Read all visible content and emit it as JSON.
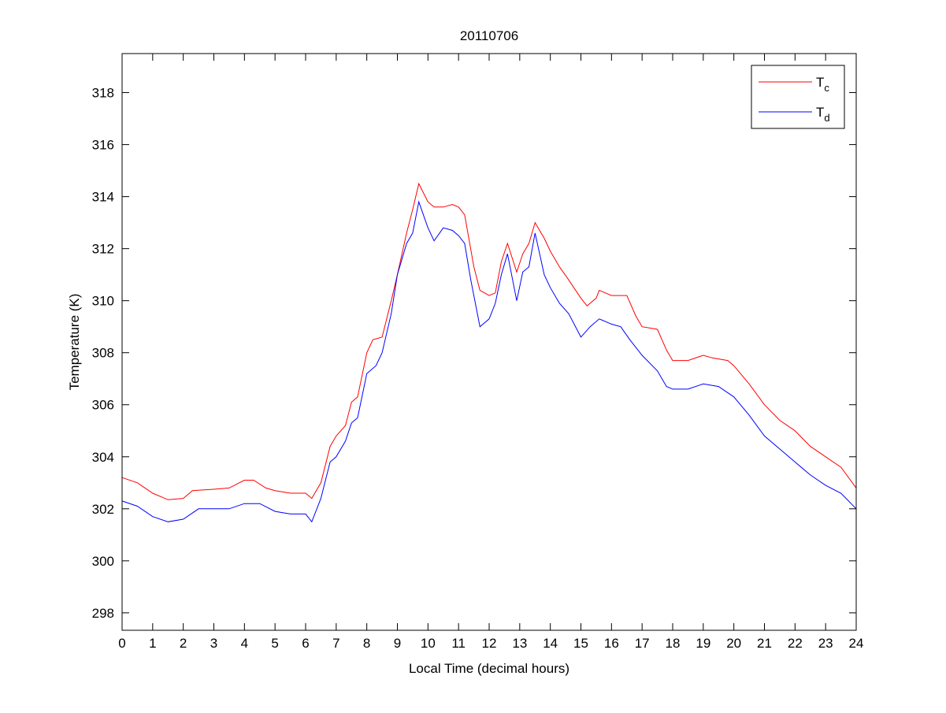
{
  "chart_data": {
    "type": "line",
    "title": "20110706",
    "xlabel": "Local Time (decimal hours)",
    "ylabel": "Temperature (K)",
    "xlim": [
      0,
      24
    ],
    "ylim": [
      297.33,
      319.5
    ],
    "xticks": [
      0,
      1,
      2,
      3,
      4,
      5,
      6,
      7,
      8,
      9,
      10,
      11,
      12,
      13,
      14,
      15,
      16,
      17,
      18,
      19,
      20,
      21,
      22,
      23,
      24
    ],
    "yticks": [
      298,
      300,
      302,
      304,
      306,
      308,
      310,
      312,
      314,
      316,
      318
    ],
    "grid": false,
    "legend_position": "top-right",
    "series": [
      {
        "name": "T",
        "subscript": "c",
        "color": "#ff0000",
        "x": [
          0,
          0.5,
          1,
          1.5,
          2,
          2.3,
          3,
          3.5,
          4,
          4.3,
          4.7,
          5,
          5.5,
          6,
          6.2,
          6.5,
          6.8,
          7,
          7.3,
          7.5,
          7.7,
          8,
          8.2,
          8.5,
          8.8,
          9,
          9.3,
          9.5,
          9.7,
          10,
          10.2,
          10.5,
          10.8,
          11,
          11.2,
          11.5,
          11.7,
          12,
          12.2,
          12.4,
          12.6,
          12.9,
          13.1,
          13.3,
          13.5,
          13.8,
          14,
          14.3,
          14.6,
          15,
          15.2,
          15.5,
          15.6,
          16,
          16.5,
          16.8,
          17,
          17.5,
          17.8,
          18,
          18.5,
          19,
          19.3,
          19.8,
          20,
          20.5,
          21,
          21.5,
          22,
          22.5,
          23,
          23.5,
          24
        ],
        "y": [
          303.2,
          303.0,
          302.6,
          302.35,
          302.4,
          302.7,
          302.75,
          302.8,
          303.1,
          303.1,
          302.8,
          302.7,
          302.6,
          302.6,
          302.4,
          303.0,
          304.4,
          304.8,
          305.2,
          306.1,
          306.3,
          308.0,
          308.5,
          308.6,
          310.0,
          311.0,
          312.6,
          313.5,
          314.5,
          313.8,
          313.6,
          313.6,
          313.7,
          313.6,
          313.3,
          311.3,
          310.4,
          310.2,
          310.3,
          311.5,
          312.2,
          311.1,
          311.8,
          312.2,
          313.0,
          312.4,
          311.9,
          311.3,
          310.8,
          310.1,
          309.8,
          310.1,
          310.4,
          310.2,
          310.2,
          309.4,
          309.0,
          308.9,
          308.1,
          307.7,
          307.7,
          307.9,
          307.8,
          307.7,
          307.5,
          306.8,
          306.0,
          305.4,
          305.0,
          304.4,
          304.0,
          303.6,
          302.8
        ]
      },
      {
        "name": "T",
        "subscript": "d",
        "color": "#0000ff",
        "x": [
          0,
          0.5,
          1,
          1.5,
          2,
          2.5,
          3,
          3.5,
          4,
          4.5,
          5,
          5.5,
          6,
          6.2,
          6.5,
          6.8,
          7,
          7.3,
          7.5,
          7.7,
          8,
          8.3,
          8.5,
          8.8,
          9,
          9.3,
          9.5,
          9.7,
          10,
          10.2,
          10.5,
          10.8,
          11,
          11.2,
          11.4,
          11.7,
          12,
          12.2,
          12.4,
          12.6,
          12.9,
          13.1,
          13.3,
          13.5,
          13.8,
          14,
          14.3,
          14.6,
          15,
          15.3,
          15.6,
          16,
          16.3,
          16.6,
          17,
          17.5,
          17.8,
          18,
          18.5,
          19,
          19.5,
          20,
          20.5,
          21,
          21.5,
          22,
          22.5,
          23,
          23.5,
          24
        ],
        "y": [
          302.3,
          302.1,
          301.7,
          301.5,
          301.6,
          302.0,
          302.0,
          302.0,
          302.2,
          302.2,
          301.9,
          301.8,
          301.8,
          301.5,
          302.4,
          303.8,
          304.0,
          304.6,
          305.3,
          305.5,
          307.2,
          307.5,
          308.0,
          309.5,
          311.0,
          312.2,
          312.6,
          313.8,
          312.8,
          312.3,
          312.8,
          312.7,
          312.5,
          312.2,
          310.8,
          309.0,
          309.3,
          309.9,
          311.0,
          311.8,
          310.0,
          311.1,
          311.3,
          312.6,
          311.0,
          310.5,
          309.9,
          309.5,
          308.6,
          309.0,
          309.3,
          309.1,
          309.0,
          308.5,
          307.9,
          307.3,
          306.7,
          306.6,
          306.6,
          306.8,
          306.7,
          306.3,
          305.6,
          304.8,
          304.3,
          303.8,
          303.3,
          302.9,
          302.6,
          302.0
        ]
      }
    ]
  }
}
